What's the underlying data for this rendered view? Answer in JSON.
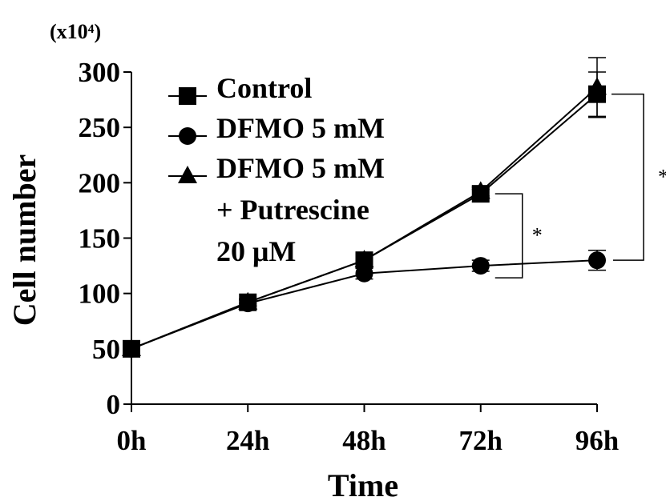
{
  "chart_data": {
    "type": "line",
    "title": "",
    "xlabel": "Time",
    "ylabel": "Cell number",
    "y_unit": "(x10⁴)",
    "categories": [
      "0h",
      "24h",
      "48h",
      "72h",
      "96h"
    ],
    "ylim": [
      0,
      300
    ],
    "yticks": [
      0,
      50,
      100,
      150,
      200,
      250,
      300
    ],
    "grid": false,
    "legend_position": "top-left",
    "series": [
      {
        "name": "Control",
        "marker": "square",
        "values": [
          50,
          92,
          130,
          190,
          280
        ],
        "errors": [
          2,
          3,
          5,
          4,
          20
        ]
      },
      {
        "name": "DFMO 5 mM",
        "marker": "circle",
        "values": [
          50,
          91,
          118,
          125,
          130
        ],
        "errors": [
          2,
          3,
          5,
          5,
          9
        ]
      },
      {
        "name": "DFMO 5 mM + Putrescine 20 μM",
        "marker": "triangle",
        "values": [
          50,
          92,
          130,
          192,
          286
        ],
        "errors": [
          2,
          3,
          5,
          4,
          27
        ]
      }
    ],
    "legend_lines": [
      "Control",
      "DFMO 5 mM",
      "DFMO 5 mM",
      "+ Putrescine",
      "20 μM"
    ],
    "annotations": [
      {
        "text": "*",
        "between": "72h"
      },
      {
        "text": "*",
        "between": "96h"
      }
    ],
    "colors": {
      "line": "#000000"
    }
  }
}
